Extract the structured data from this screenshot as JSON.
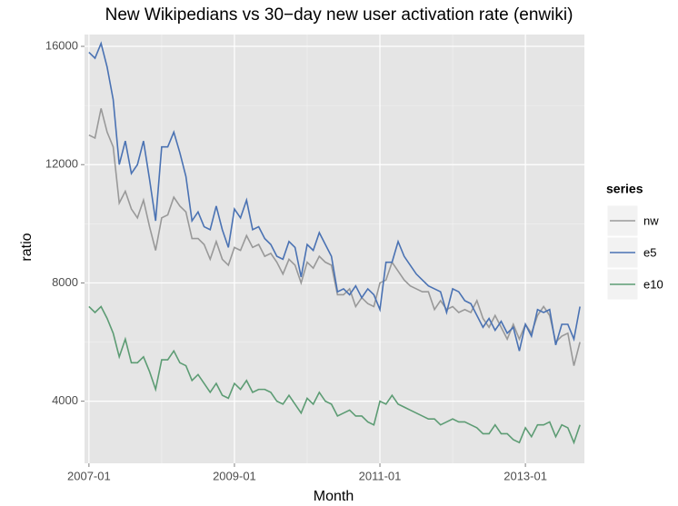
{
  "chart_data": {
    "type": "line",
    "title": "New Wikipedians vs 30−day new user activation rate (enwiki)",
    "x_label": "Month",
    "y_label": "ratio",
    "legend_title": "series",
    "x": [
      "2007-01",
      "2007-02",
      "2007-03",
      "2007-04",
      "2007-05",
      "2007-06",
      "2007-07",
      "2007-08",
      "2007-09",
      "2007-10",
      "2007-11",
      "2007-12",
      "2008-01",
      "2008-02",
      "2008-03",
      "2008-04",
      "2008-05",
      "2008-06",
      "2008-07",
      "2008-08",
      "2008-09",
      "2008-10",
      "2008-11",
      "2008-12",
      "2009-01",
      "2009-02",
      "2009-03",
      "2009-04",
      "2009-05",
      "2009-06",
      "2009-07",
      "2009-08",
      "2009-09",
      "2009-10",
      "2009-11",
      "2009-12",
      "2010-01",
      "2010-02",
      "2010-03",
      "2010-04",
      "2010-05",
      "2010-06",
      "2010-07",
      "2010-08",
      "2010-09",
      "2010-10",
      "2010-11",
      "2010-12",
      "2011-01",
      "2011-02",
      "2011-03",
      "2011-04",
      "2011-05",
      "2011-06",
      "2011-07",
      "2011-08",
      "2011-09",
      "2011-10",
      "2011-11",
      "2011-12",
      "2012-01",
      "2012-02",
      "2012-03",
      "2012-04",
      "2012-05",
      "2012-06",
      "2012-07",
      "2012-08",
      "2012-09",
      "2012-10",
      "2012-11",
      "2012-12",
      "2013-01",
      "2013-02",
      "2013-03",
      "2013-04",
      "2013-05",
      "2013-06",
      "2013-07",
      "2013-08",
      "2013-09",
      "2013-10"
    ],
    "series": [
      {
        "name": "nw",
        "color": "#999999",
        "values": [
          13000,
          12900,
          13900,
          13100,
          12600,
          10700,
          11100,
          10500,
          10200,
          10800,
          9900,
          9100,
          10200,
          10300,
          10900,
          10600,
          10400,
          9500,
          9500,
          9300,
          8800,
          9400,
          8800,
          8600,
          9200,
          9100,
          9600,
          9200,
          9300,
          8900,
          9000,
          8700,
          8300,
          8800,
          8600,
          8000,
          8700,
          8500,
          8900,
          8700,
          8600,
          7600,
          7600,
          7800,
          7200,
          7500,
          7300,
          7200,
          8000,
          8100,
          8700,
          8400,
          8100,
          7900,
          7800,
          7700,
          7700,
          7100,
          7400,
          7100,
          7200,
          7000,
          7100,
          7000,
          7400,
          6800,
          6500,
          6900,
          6500,
          6100,
          6600,
          6100,
          6600,
          6300,
          6900,
          7200,
          6900,
          6000,
          6200,
          6300,
          5200,
          6000
        ]
      },
      {
        "name": "e5",
        "color": "#4a72b3",
        "values": [
          15800,
          15600,
          16100,
          15300,
          14200,
          12000,
          12800,
          11700,
          12000,
          12800,
          11500,
          10100,
          12600,
          12600,
          13100,
          12400,
          11600,
          10100,
          10400,
          9900,
          9800,
          10600,
          9800,
          9200,
          10500,
          10200,
          10800,
          9800,
          9900,
          9500,
          9300,
          8900,
          8800,
          9400,
          9200,
          8200,
          9300,
          9100,
          9700,
          9300,
          8900,
          7700,
          7800,
          7600,
          7900,
          7500,
          7800,
          7600,
          7100,
          8700,
          8700,
          9400,
          8900,
          8600,
          8300,
          8100,
          7900,
          7800,
          7700,
          7000,
          7800,
          7700,
          7400,
          7300,
          6900,
          6500,
          6800,
          6400,
          6700,
          6300,
          6500,
          5700,
          6600,
          6200,
          7100,
          7000,
          7100,
          5900,
          6600,
          6600,
          6100,
          7200
        ]
      },
      {
        "name": "e10",
        "color": "#5d9c74",
        "values": [
          7200,
          7000,
          7200,
          6800,
          6300,
          5500,
          6100,
          5300,
          5300,
          5500,
          5000,
          4400,
          5400,
          5400,
          5700,
          5300,
          5200,
          4700,
          4900,
          4600,
          4300,
          4600,
          4200,
          4100,
          4600,
          4400,
          4700,
          4300,
          4400,
          4400,
          4300,
          4000,
          3900,
          4200,
          3900,
          3600,
          4100,
          3900,
          4300,
          4000,
          3900,
          3500,
          3600,
          3700,
          3500,
          3500,
          3300,
          3200,
          4000,
          3900,
          4200,
          3900,
          3800,
          3700,
          3600,
          3500,
          3400,
          3400,
          3200,
          3300,
          3400,
          3300,
          3300,
          3200,
          3100,
          2900,
          2900,
          3200,
          2900,
          2900,
          2700,
          2600,
          3100,
          2800,
          3200,
          3200,
          3300,
          2800,
          3200,
          3100,
          2600,
          3200
        ]
      }
    ],
    "xticks": [
      "2007-01",
      "2009-01",
      "2011-01",
      "2013-01"
    ],
    "ylim": [
      1900,
      16400
    ],
    "yticks": [
      4000,
      8000,
      12000,
      16000
    ],
    "grid": true,
    "legend": "right"
  }
}
